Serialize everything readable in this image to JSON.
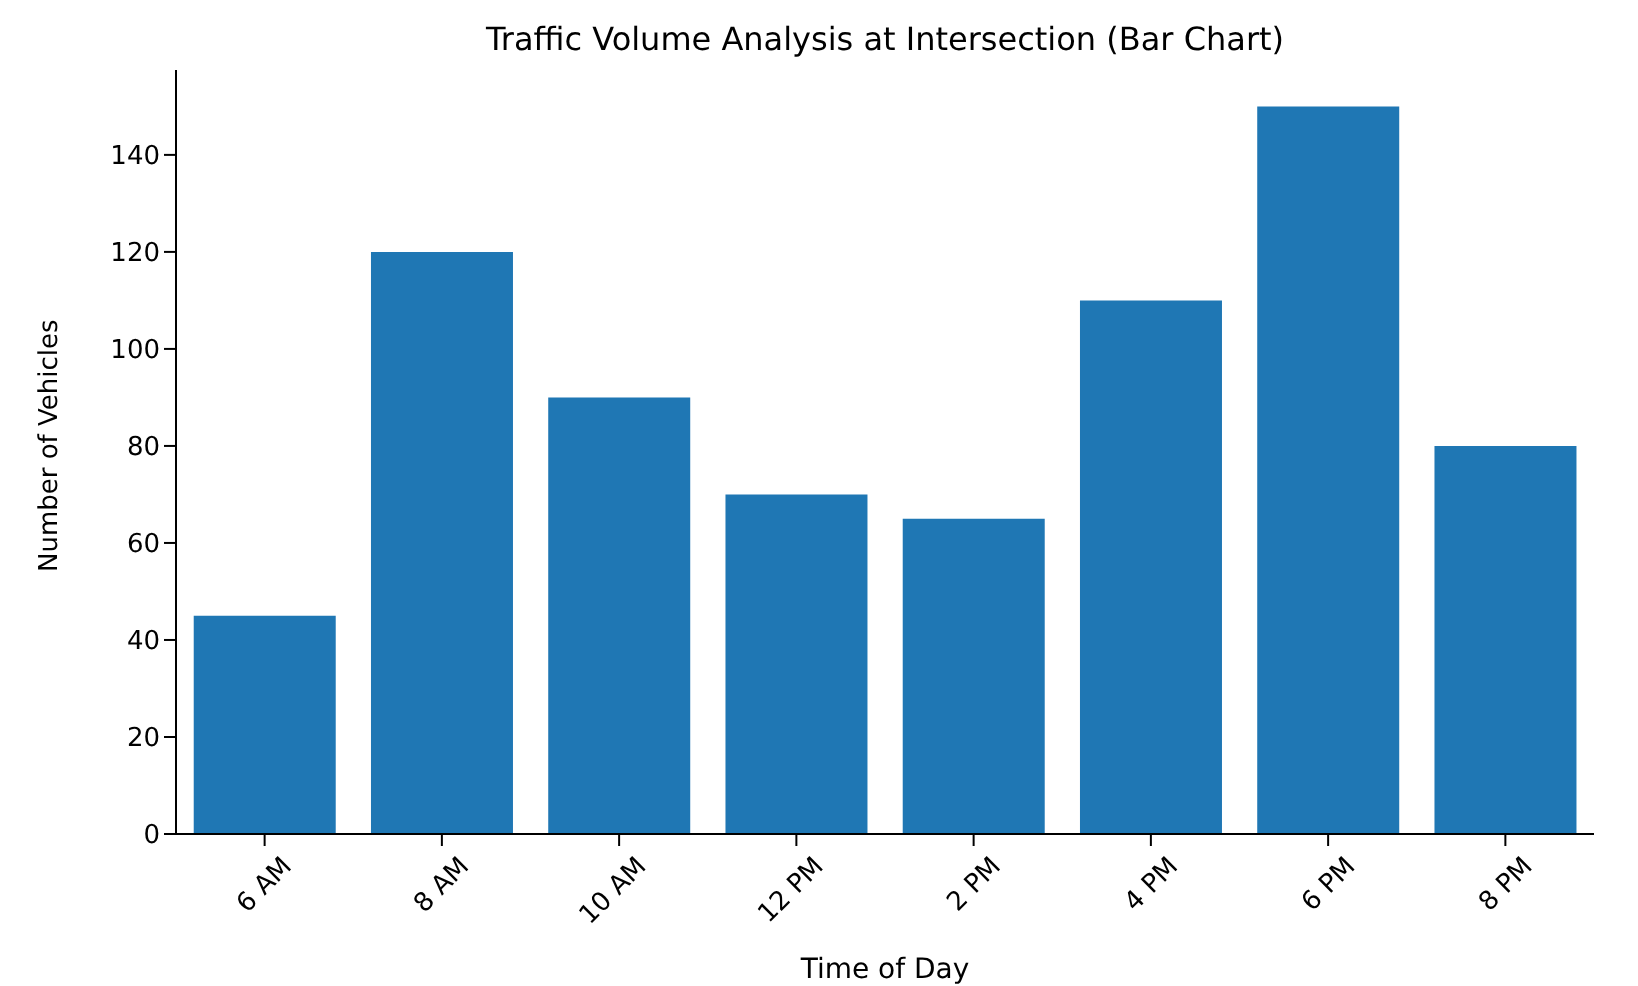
{
  "chart_data": {
    "type": "bar",
    "title": "Traffic Volume Analysis at Intersection (Bar Chart)",
    "xlabel": "Time of Day",
    "ylabel": "Number of Vehicles",
    "categories": [
      "6 AM",
      "8 AM",
      "10 AM",
      "12 PM",
      "2 PM",
      "4 PM",
      "6 PM",
      "8 PM"
    ],
    "values": [
      45,
      120,
      90,
      70,
      65,
      110,
      150,
      80
    ],
    "color": "#1f77b4",
    "ylim": [
      0,
      157.5
    ],
    "yticks": [
      0,
      20,
      40,
      60,
      80,
      100,
      120,
      140
    ],
    "grid": false,
    "legend": false
  }
}
